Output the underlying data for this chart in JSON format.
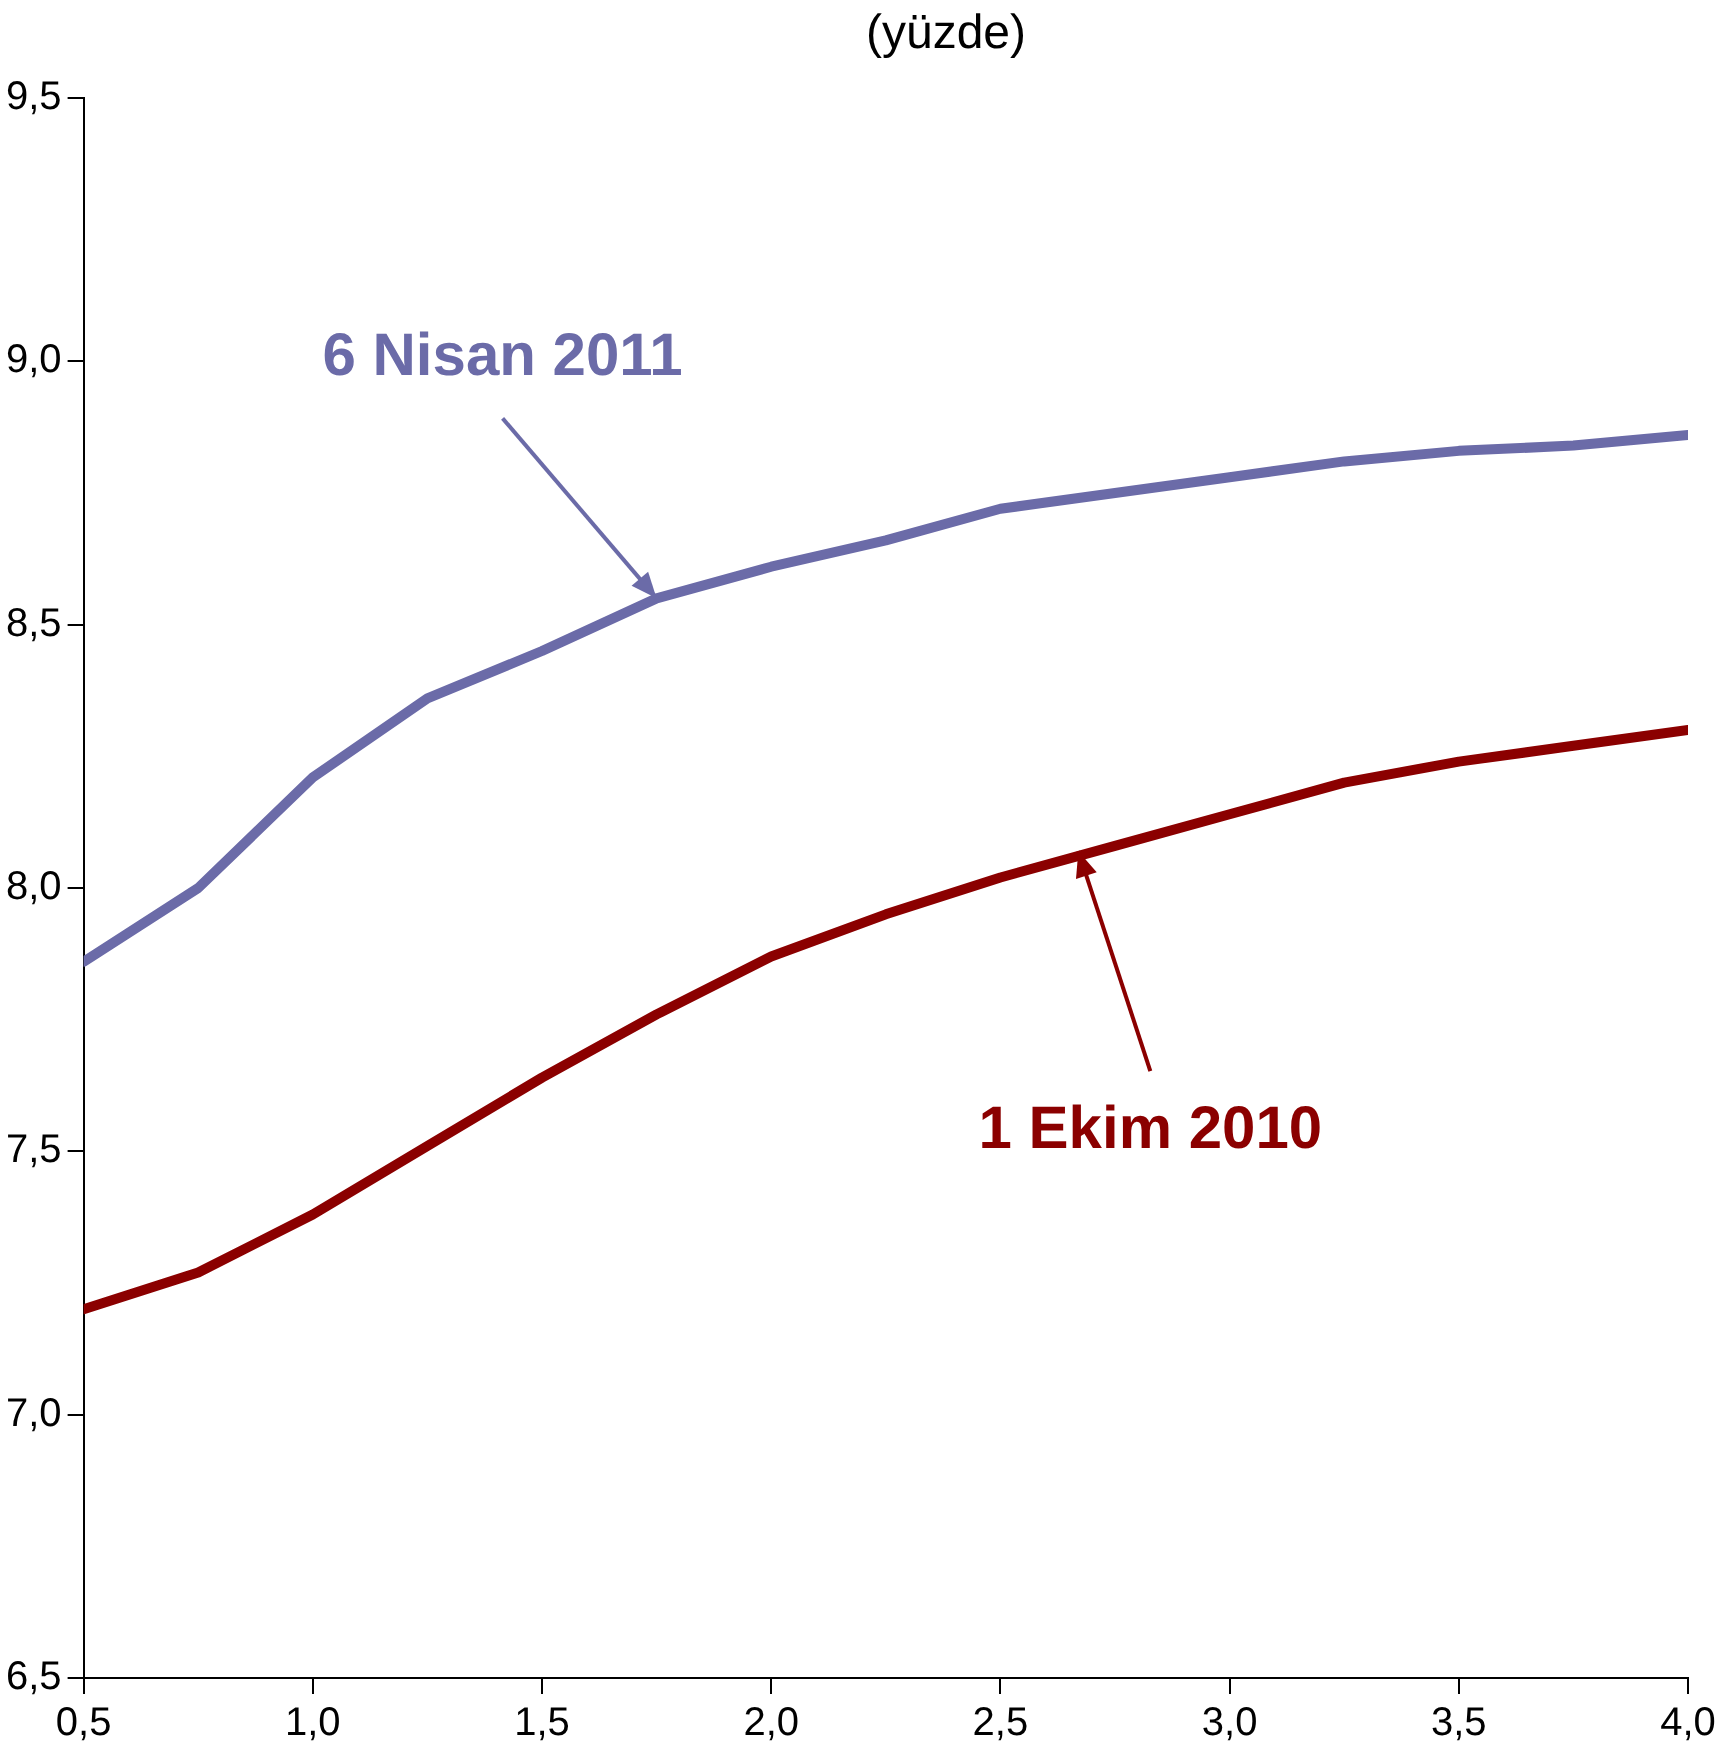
{
  "chart_data": {
    "type": "line",
    "title": "(yüzde)",
    "x": [
      0.5,
      0.75,
      1.0,
      1.25,
      1.5,
      1.75,
      2.0,
      2.25,
      2.5,
      2.75,
      3.0,
      3.25,
      3.5,
      3.75,
      4.0
    ],
    "series": [
      {
        "color": "#6b6ba8",
        "values": [
          7.86,
          8.0,
          8.21,
          8.36,
          8.45,
          8.55,
          8.61,
          8.66,
          8.72,
          8.75,
          8.78,
          8.81,
          8.83,
          8.84,
          8.86
        ]
      },
      {
        "color": "#8b0000",
        "values": [
          7.2,
          7.27,
          7.38,
          7.51,
          7.64,
          7.76,
          7.87,
          7.95,
          8.02,
          8.08,
          8.14,
          8.2,
          8.24,
          8.27,
          8.3
        ]
      }
    ],
    "xlim": [
      0.5,
      4.0
    ],
    "xticks": [
      {
        "value": 0.5,
        "label": "0,5"
      },
      {
        "value": 1.0,
        "label": "1,0"
      },
      {
        "value": 1.5,
        "label": "1,5"
      },
      {
        "value": 2.0,
        "label": "2,0"
      },
      {
        "value": 2.5,
        "label": "2,5"
      },
      {
        "value": 3.0,
        "label": "3,0"
      },
      {
        "value": 3.5,
        "label": "3,5"
      },
      {
        "value": 4.0,
        "label": "4,0"
      }
    ],
    "ylim": [
      6.5,
      9.5
    ],
    "yticks": [
      {
        "value": 6.5,
        "label": "6,5"
      },
      {
        "value": 7.0,
        "label": "7,0"
      },
      {
        "value": 7.5,
        "label": "7,5"
      },
      {
        "value": 8.0,
        "label": "8,0"
      },
      {
        "value": 8.5,
        "label": "8,5"
      },
      {
        "value": 9.0,
        "label": "9,0"
      },
      {
        "value": 9.5,
        "label": "9,5"
      }
    ],
    "annotations": [
      {
        "text": "6 Nisan 2011",
        "x": 1.75,
        "y": 8.55
      },
      {
        "text": "1 Ekim 2010",
        "x": 2.67,
        "y": 8.07
      }
    ],
    "grid": false,
    "legend": false,
    "marker": "none",
    "line_style": "solid"
  }
}
